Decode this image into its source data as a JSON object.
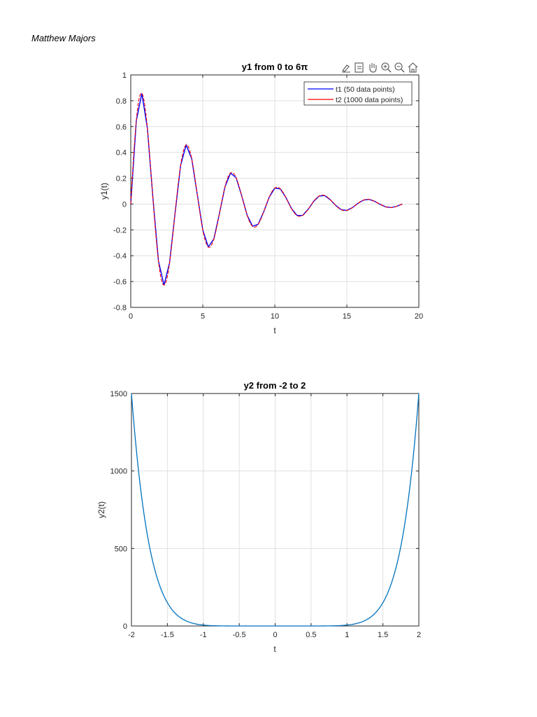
{
  "page": {
    "author": "Matthew Majors"
  },
  "toolbar": {
    "icons": [
      "brush-icon",
      "data-tip-icon",
      "pan-hand-icon",
      "zoom-in-icon",
      "zoom-out-icon",
      "home-icon"
    ]
  },
  "chart_data": [
    {
      "type": "line",
      "title": "y1 from 0 to 6π",
      "xlabel": "t",
      "ylabel": "y1(t)",
      "xlim": [
        0,
        20
      ],
      "ylim": [
        -0.8,
        1
      ],
      "xticks": [
        0,
        5,
        10,
        15,
        20
      ],
      "yticks": [
        -0.8,
        -0.6,
        -0.4,
        -0.2,
        0,
        0.2,
        0.4,
        0.6,
        0.8,
        1
      ],
      "xtick_labels": [
        "0",
        "5",
        "10",
        "15",
        "20"
      ],
      "ytick_labels": [
        "-0.8",
        "-0.6",
        "-0.4",
        "-0.2",
        "0",
        "0.2",
        "0.4",
        "0.6",
        "0.8",
        "1"
      ],
      "grid": true,
      "legend": "top-right",
      "function": "y1(t) = exp(-0.2 t) * sin(2 t)",
      "series": [
        {
          "name": "t1 (50 data points)",
          "color": "#0000ff",
          "x_start": 0,
          "x_end": 18.8496,
          "points": 50
        },
        {
          "name": "t2 (1000 data points)",
          "color": "#ff0000",
          "x_start": 0,
          "x_end": 18.8496,
          "points": 1000
        }
      ]
    },
    {
      "type": "line",
      "title": "y2 from -2 to 2",
      "xlabel": "t",
      "ylabel": "y2(t)",
      "xlim": [
        -2,
        2
      ],
      "ylim": [
        0,
        1500
      ],
      "xticks": [
        -2,
        -1.5,
        -1,
        -0.5,
        0,
        0.5,
        1,
        1.5,
        2
      ],
      "yticks": [
        0,
        500,
        1000,
        1500
      ],
      "xtick_labels": [
        "-2",
        "-1.5",
        "-1",
        "-0.5",
        "0",
        "0.5",
        "1",
        "1.5",
        "2"
      ],
      "ytick_labels": [
        "0",
        "500",
        "1000",
        "1500"
      ],
      "grid": true,
      "function": "y2(t) ≈ 1500 (t/2)^8",
      "series": [
        {
          "color": "#0072bd",
          "x_start": -2,
          "x_end": 2,
          "points": 200
        }
      ]
    }
  ]
}
